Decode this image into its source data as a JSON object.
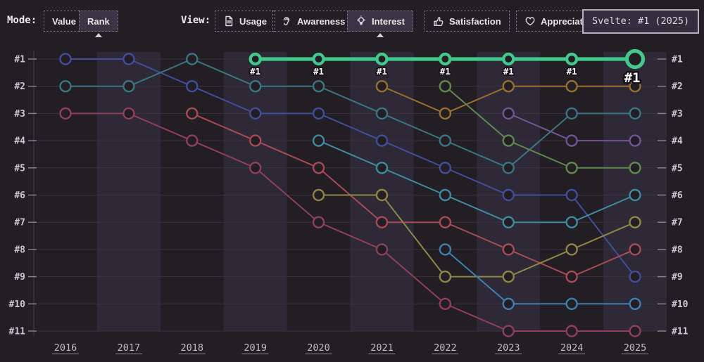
{
  "header": {
    "mode_label": "Mode:",
    "view_label": "View:",
    "mode_buttons": [
      {
        "label": "Value",
        "selected": false
      },
      {
        "label": "Rank",
        "selected": true
      }
    ],
    "view_buttons": [
      {
        "label": "Usage",
        "icon": "document-icon",
        "selected": false
      },
      {
        "label": "Awareness",
        "icon": "ear-icon",
        "selected": false
      },
      {
        "label": "Interest",
        "icon": "lightbulb-icon",
        "selected": true
      },
      {
        "label": "Satisfaction",
        "icon": "thumbs-up-icon",
        "selected": false
      },
      {
        "label": "Appreciation",
        "icon": "heart-icon",
        "selected": false
      }
    ]
  },
  "tooltip": {
    "text": "Svelte: #1 (2025)"
  },
  "chart_data": {
    "type": "line",
    "subtype": "bump-ranking",
    "years": [
      "2016",
      "2017",
      "2018",
      "2019",
      "2020",
      "2021",
      "2022",
      "2023",
      "2024",
      "2025"
    ],
    "rank_labels": [
      "#1",
      "#2",
      "#3",
      "#4",
      "#5",
      "#6",
      "#7",
      "#8",
      "#9",
      "#10",
      "#11"
    ],
    "ylim": [
      1,
      11
    ],
    "grid": true,
    "band_years": [
      "2017",
      "2019",
      "2021",
      "2023",
      "2025"
    ],
    "colors": {
      "background": "#221e24",
      "band": "#2e2936",
      "gridline": "#39333d",
      "axis_line": "#453f4a",
      "tick": "#847f8a",
      "rank_label": "#cdc8d0",
      "year_label": "#c2bdc5",
      "highlight": "#42c98b",
      "point_label": "#ffffff"
    },
    "highlight_series": "Svelte",
    "highlight_point_label": "#1",
    "highlight_end_label": "#1",
    "series": [
      {
        "name": "series-indigo",
        "color": "#424d9a",
        "start_year": 2016,
        "ranks": [
          1,
          1,
          2,
          3,
          3,
          4,
          5,
          6,
          6,
          9
        ],
        "highlight": false
      },
      {
        "name": "series-teal",
        "color": "#3b7482",
        "start_year": 2016,
        "ranks": [
          2,
          2,
          1,
          2,
          2,
          3,
          4,
          5,
          3,
          3
        ],
        "highlight": false
      },
      {
        "name": "series-rose",
        "color": "#8f3e5c",
        "start_year": 2016,
        "ranks": [
          3,
          3,
          4,
          5,
          7,
          8,
          10,
          11,
          11,
          11
        ],
        "highlight": false
      },
      {
        "name": "series-crimson",
        "color": "#a84a55",
        "start_year": 2018,
        "ranks": [
          3,
          4,
          5,
          7,
          7,
          8,
          9,
          8
        ],
        "highlight": false
      },
      {
        "name": "series-teal-2",
        "color": "#3f8aa0",
        "start_year": 2020,
        "ranks": [
          4,
          5,
          6,
          7,
          7,
          6
        ],
        "highlight": false
      },
      {
        "name": "series-olive",
        "color": "#8d8747",
        "start_year": 2020,
        "ranks": [
          6,
          6,
          9,
          9,
          8,
          7
        ],
        "highlight": false
      },
      {
        "name": "series-gold",
        "color": "#97702f",
        "start_year": 2021,
        "ranks": [
          2,
          3,
          2,
          2,
          2
        ],
        "highlight": false
      },
      {
        "name": "series-green",
        "color": "#618750",
        "start_year": 2022,
        "ranks": [
          2,
          4,
          5,
          5
        ],
        "highlight": false
      },
      {
        "name": "series-steelblue",
        "color": "#3f7fae",
        "start_year": 2022,
        "ranks": [
          8,
          10,
          10,
          10
        ],
        "highlight": false
      },
      {
        "name": "series-violet",
        "color": "#6f5596",
        "start_year": 2023,
        "ranks": [
          3,
          4,
          4
        ],
        "highlight": false
      },
      {
        "name": "Svelte",
        "color": "#42c98b",
        "start_year": 2019,
        "ranks": [
          1,
          1,
          1,
          1,
          1,
          1,
          1
        ],
        "highlight": true
      }
    ]
  }
}
